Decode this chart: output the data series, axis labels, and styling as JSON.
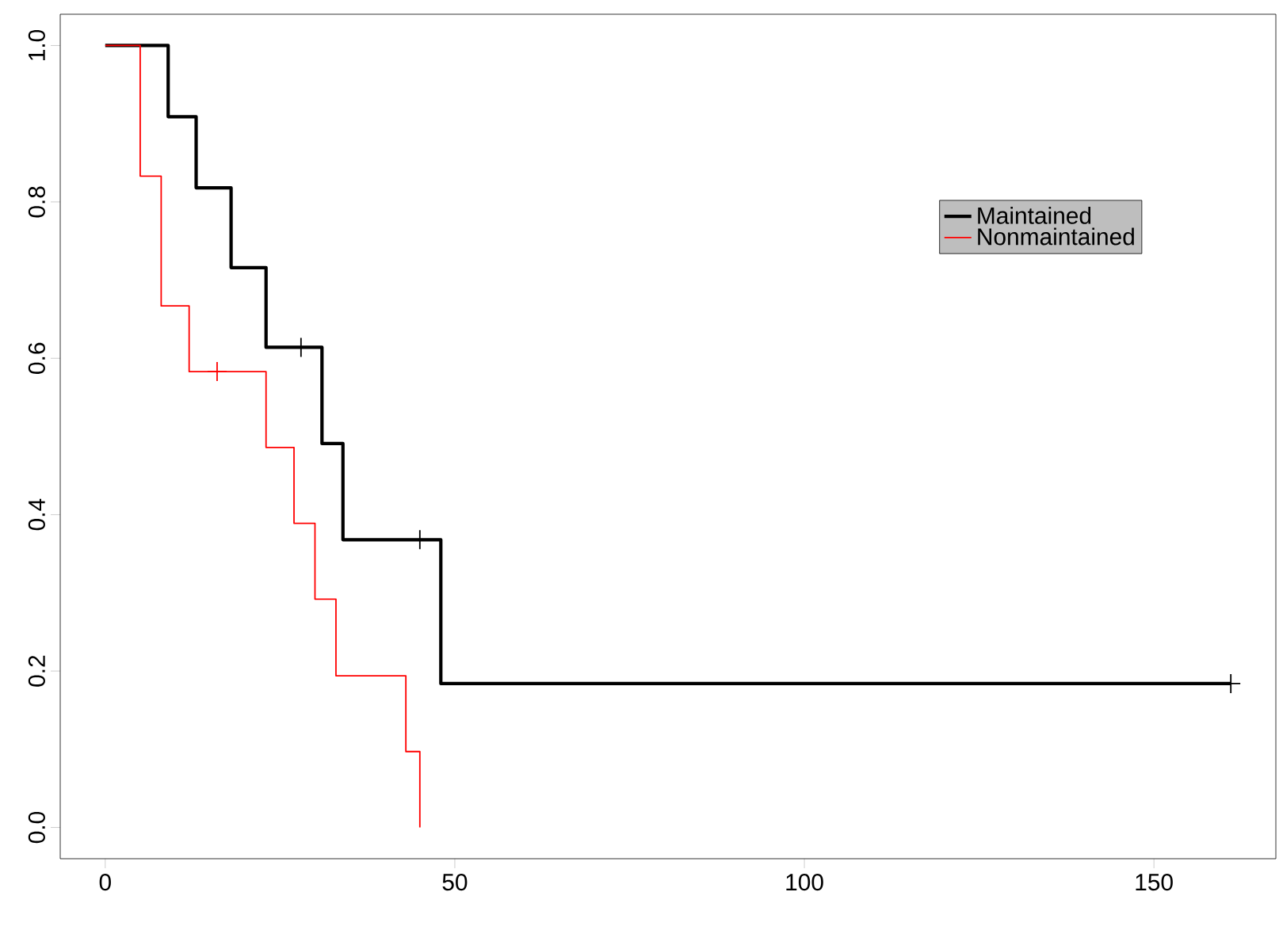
{
  "chart_data": {
    "type": "step",
    "xlim": [
      -6.44,
      167.44
    ],
    "ylim": [
      -0.04,
      1.04
    ],
    "xticks": [
      0,
      50,
      100,
      150
    ],
    "yticks": [
      {
        "value": 0,
        "label": "0.0"
      },
      {
        "value": 0.2,
        "label": "0.2"
      },
      {
        "value": 0.4,
        "label": "0.4"
      },
      {
        "value": 0.6,
        "label": "0.6"
      },
      {
        "value": 0.8,
        "label": "0.8"
      },
      {
        "value": 1,
        "label": "1.0"
      }
    ],
    "legend": "top right",
    "grid": false,
    "series": [
      {
        "name": "Maintained",
        "color": "#000000",
        "x": [
          0,
          9,
          13,
          18,
          23,
          31,
          34,
          48,
          161
        ],
        "values": [
          1,
          0.909,
          0.818,
          0.716,
          0.614,
          0.491,
          0.368,
          0.184,
          0.184
        ]
      },
      {
        "name": "Nonmaintained",
        "color": "#ff0000",
        "x": [
          0,
          5,
          8,
          12,
          23,
          27,
          30,
          33,
          43,
          45
        ],
        "values": [
          1,
          0.833,
          0.667,
          0.583,
          0.486,
          0.389,
          0.292,
          0.194,
          0.097,
          0
        ]
      },
      {
        "type": "scatter",
        "marker": "cross",
        "color": "#000000",
        "x": [
          28,
          45,
          161
        ],
        "values": [
          0.614,
          0.368,
          0.184
        ]
      },
      {
        "type": "scatter",
        "marker": "cross",
        "color": "#ff0000",
        "x": [
          16
        ],
        "values": [
          0.583
        ]
      }
    ]
  }
}
